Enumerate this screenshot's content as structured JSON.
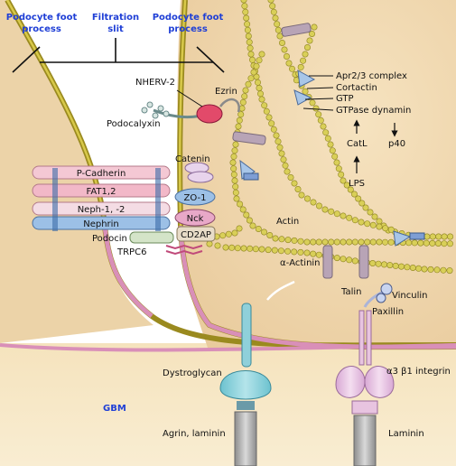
{
  "header": {
    "left_line1": "Podocyte foot",
    "left_line2": "process",
    "mid_line1": "Filtration",
    "mid_line2": "slit",
    "right_line1": "Podocyte foot",
    "right_line2": "process"
  },
  "proteins": {
    "nherv2": "NHERV-2",
    "ezrin": "Ezrin",
    "podocalyxin": "Podocalyxin",
    "catenin": "Catenin",
    "zo1": "ZO-1",
    "nck": "Nck",
    "cd2ap": "CD2AP",
    "podocin": "Podocin",
    "trpc6": "TRPC6",
    "actin": "Actin",
    "alpha_actinin": "α-Actinin",
    "talin": "Talin",
    "vinculin": "Vinculin",
    "paxillin": "Paxillin",
    "dystroglycan": "Dystroglycan",
    "integrin": "α3 β1 integrin",
    "agrin_laminin": "Agrin, laminin",
    "laminin": "Laminin",
    "gbm": "GBM"
  },
  "slit_bars": {
    "p_cadherin": "P-Cadherin",
    "fat": "FAT1,2",
    "neph": "Neph-1, -2",
    "nephrin": "Nephrin"
  },
  "pathway": {
    "apr": "Apr2/3 complex",
    "cortactin": "Cortactin",
    "gtp": "GTP",
    "gtpase": "GTPase dynamin",
    "catl": "CatL",
    "p40": "p40",
    "lps": "LPS"
  },
  "colors": {
    "cytoplasm": "#f3deb8",
    "gbm": "#f7e7c4",
    "membrane_gold": "#b7a32a",
    "membrane_pink": "#d98fb8",
    "beads": "#c9c24a",
    "nephrin_blue": "#9cc0e6",
    "cadherin_pink": "#f4c8d4",
    "header_blue": "#1f3fd6"
  }
}
